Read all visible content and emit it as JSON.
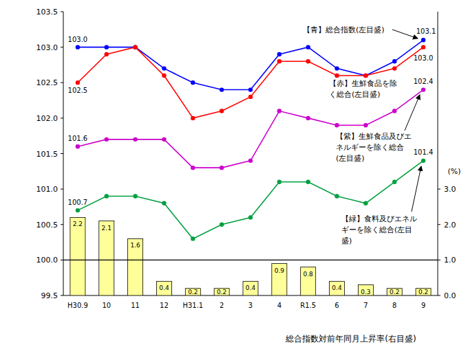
{
  "chart_data": {
    "type": "line",
    "categories": [
      "H30.9",
      "10",
      "11",
      "12",
      "H31.1",
      "2",
      "3",
      "4",
      "R1.5",
      "6",
      "7",
      "8",
      "9"
    ],
    "ylim": [
      99.5,
      103.5
    ],
    "yticks": [
      99.5,
      {
        "value": 100,
        "label": "100.0"
      },
      100.5,
      {
        "value": 101,
        "label": "101.0"
      },
      101.5,
      {
        "value": 102,
        "label": "102.0"
      },
      102.5,
      {
        "value": 103,
        "label": "103.0"
      },
      103.5
    ],
    "y2lim": [
      0,
      8
    ],
    "y2ticks": [
      {
        "value": 0,
        "label": "0.0"
      },
      {
        "value": 1,
        "label": "1.0"
      },
      {
        "value": 2,
        "label": "2.0"
      },
      {
        "value": 3,
        "label": "3.0"
      }
    ],
    "y2label": "(%)",
    "reference_line": 100,
    "grid": false,
    "series": [
      {
        "name": "【青】総合指数(左目盛)",
        "color": "#0000ff",
        "marker": "circle",
        "values": [
          103.0,
          103.0,
          103.0,
          102.7,
          102.5,
          102.4,
          102.4,
          102.9,
          103.0,
          102.7,
          102.6,
          102.8,
          103.1
        ],
        "value_labels": [
          "103.0",
          null,
          null,
          null,
          null,
          null,
          null,
          null,
          null,
          null,
          null,
          null,
          "103.1"
        ]
      },
      {
        "name": "【赤】生鮮食品を除く総合(左目盛)",
        "color": "#ff0000",
        "marker": "circle",
        "values": [
          102.5,
          102.9,
          103.0,
          102.6,
          102.0,
          102.1,
          102.3,
          102.8,
          102.8,
          102.6,
          102.6,
          102.7,
          103.0
        ],
        "value_labels": [
          "102.5",
          null,
          null,
          null,
          null,
          null,
          null,
          null,
          null,
          null,
          null,
          null,
          "103.0"
        ]
      },
      {
        "name": "【紫】生鮮食品及びエネルギーを除く総合(左目盛)",
        "color": "#cc00cc",
        "marker": "circle",
        "values": [
          101.6,
          101.7,
          101.7,
          101.7,
          101.3,
          101.3,
          101.4,
          102.1,
          102.0,
          101.9,
          101.9,
          102.1,
          102.4
        ],
        "value_labels": [
          "101.6",
          null,
          null,
          null,
          null,
          null,
          null,
          null,
          null,
          null,
          null,
          null,
          "102.4"
        ]
      },
      {
        "name": "【緑】食料及びエネルギーを除く総合(左目盛)",
        "color": "#00a040",
        "marker": "circle",
        "values": [
          100.7,
          100.9,
          100.9,
          100.8,
          100.3,
          100.5,
          100.6,
          101.1,
          101.1,
          100.9,
          100.8,
          101.1,
          101.4
        ],
        "value_labels": [
          "100.7",
          null,
          null,
          null,
          null,
          null,
          null,
          null,
          null,
          null,
          null,
          null,
          "101.4"
        ]
      },
      {
        "name": "総合指数対前年同月上昇率(右目盛)",
        "type": "bar",
        "axis": "y2",
        "color": "#ffff99",
        "data_labels": true,
        "values": [
          2.2,
          2.1,
          1.6,
          0.4,
          0.2,
          0.2,
          0.4,
          0.9,
          0.8,
          0.4,
          0.3,
          0.2,
          0.2
        ]
      }
    ]
  }
}
